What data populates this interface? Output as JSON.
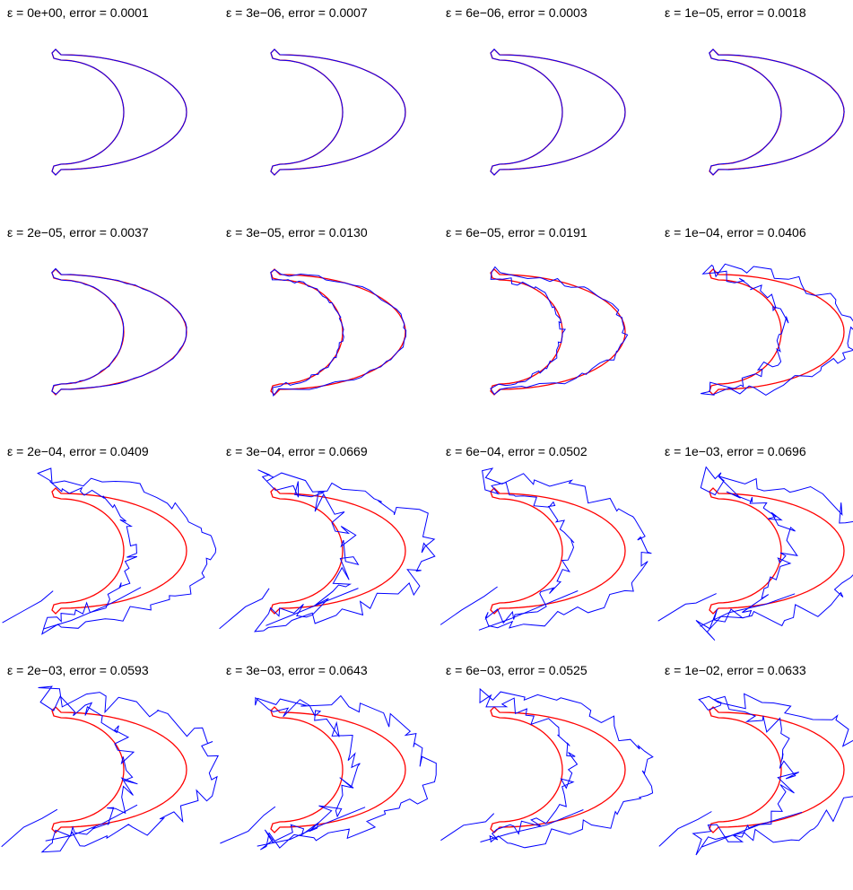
{
  "chart_data": {
    "type": "line",
    "colors": {
      "reference": "#ff0000",
      "reconstruction": "#0000ff"
    },
    "panels": [
      {
        "eps_label": "ε = 0e+00",
        "epsilon": 0,
        "error": 0.0001,
        "title": "ε = 0e+00, error = 0.0001"
      },
      {
        "eps_label": "ε = 3e−06",
        "epsilon": 3e-06,
        "error": 0.0007,
        "title": "ε = 3e−06, error = 0.0007"
      },
      {
        "eps_label": "ε = 6e−06",
        "epsilon": 6e-06,
        "error": 0.0003,
        "title": "ε = 6e−06, error = 0.0003"
      },
      {
        "eps_label": "ε = 1e−05",
        "epsilon": 1e-05,
        "error": 0.0018,
        "title": "ε = 1e−05, error = 0.0018"
      },
      {
        "eps_label": "ε = 2e−05",
        "epsilon": 2e-05,
        "error": 0.0037,
        "title": "ε = 2e−05, error = 0.0037"
      },
      {
        "eps_label": "ε = 3e−05",
        "epsilon": 3e-05,
        "error": 0.013,
        "title": "ε = 3e−05, error = 0.0130"
      },
      {
        "eps_label": "ε = 6e−05",
        "epsilon": 6e-05,
        "error": 0.0191,
        "title": "ε = 6e−05, error = 0.0191"
      },
      {
        "eps_label": "ε = 1e−04",
        "epsilon": 0.0001,
        "error": 0.0406,
        "title": "ε = 1e−04, error = 0.0406"
      },
      {
        "eps_label": "ε = 2e−04",
        "epsilon": 0.0002,
        "error": 0.0409,
        "title": "ε = 2e−04, error = 0.0409"
      },
      {
        "eps_label": "ε = 3e−04",
        "epsilon": 0.0003,
        "error": 0.0669,
        "title": "ε = 3e−04, error = 0.0669"
      },
      {
        "eps_label": "ε = 6e−04",
        "epsilon": 0.0006,
        "error": 0.0502,
        "title": "ε = 6e−04, error = 0.0502"
      },
      {
        "eps_label": "ε = 1e−03",
        "epsilon": 0.001,
        "error": 0.0696,
        "title": "ε = 1e−03, error = 0.0696"
      },
      {
        "eps_label": "ε = 2e−03",
        "epsilon": 0.002,
        "error": 0.0593,
        "title": "ε = 2e−03, error = 0.0593"
      },
      {
        "eps_label": "ε = 3e−03",
        "epsilon": 0.003,
        "error": 0.0643,
        "title": "ε = 3e−03, error = 0.0643"
      },
      {
        "eps_label": "ε = 6e−03",
        "epsilon": 0.006,
        "error": 0.0525,
        "title": "ε = 6e−03, error = 0.0525"
      },
      {
        "eps_label": "ε = 1e−02",
        "epsilon": 0.01,
        "error": 0.0633,
        "title": "ε = 1e−02, error = 0.0633"
      }
    ]
  }
}
